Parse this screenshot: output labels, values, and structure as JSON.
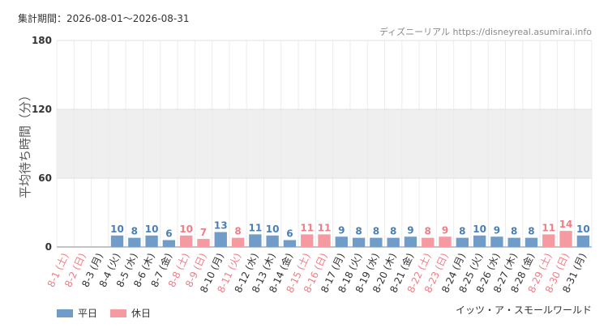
{
  "header": {
    "period_label": "集計期間：",
    "period_value": "2026-08-01〜2026-08-31",
    "site": "ディズニーリアル https://disneyreal.asumirai.info"
  },
  "footer": {
    "attraction": "イッツ・ア・スモールワールド"
  },
  "colors": {
    "weekday": "#6f9cc8",
    "holiday": "#f59aa0",
    "weekday_text": "#4a7fb5",
    "holiday_text": "#ef7d86",
    "band": "#efefef",
    "grid": "#e0e0e0"
  },
  "chart_data": {
    "type": "bar",
    "ylabel": "平均待ち時間（分）",
    "ylim": [
      0,
      180
    ],
    "yticks": [
      0,
      60,
      120,
      180
    ],
    "grid": true,
    "legend_position": "bottom-left",
    "legend": [
      {
        "name": "平日",
        "color": "#6f9cc8"
      },
      {
        "name": "休日",
        "color": "#f59aa0"
      }
    ],
    "categories": [
      "8-1 (土)",
      "8-2 (日)",
      "8-3 (月)",
      "8-4 (火)",
      "8-5 (水)",
      "8-6 (木)",
      "8-7 (金)",
      "8-8 (土)",
      "8-9 (日)",
      "8-10 (月)",
      "8-11 (火)",
      "8-12 (水)",
      "8-13 (木)",
      "8-14 (金)",
      "8-15 (土)",
      "8-16 (日)",
      "8-17 (月)",
      "8-18 (火)",
      "8-19 (水)",
      "8-20 (木)",
      "8-21 (金)",
      "8-22 (土)",
      "8-23 (日)",
      "8-24 (月)",
      "8-25 (火)",
      "8-26 (水)",
      "8-27 (木)",
      "8-28 (金)",
      "8-29 (土)",
      "8-30 (日)",
      "8-31 (月)"
    ],
    "values": [
      null,
      null,
      null,
      10,
      8,
      10,
      6,
      10,
      7,
      13,
      8,
      11,
      10,
      6,
      11,
      11,
      9,
      8,
      8,
      8,
      9,
      8,
      9,
      8,
      10,
      9,
      8,
      8,
      11,
      14,
      10
    ],
    "holiday": [
      true,
      true,
      false,
      false,
      false,
      false,
      false,
      true,
      true,
      false,
      true,
      false,
      false,
      false,
      true,
      true,
      false,
      false,
      false,
      false,
      false,
      true,
      true,
      false,
      false,
      false,
      false,
      false,
      true,
      true,
      false
    ]
  }
}
